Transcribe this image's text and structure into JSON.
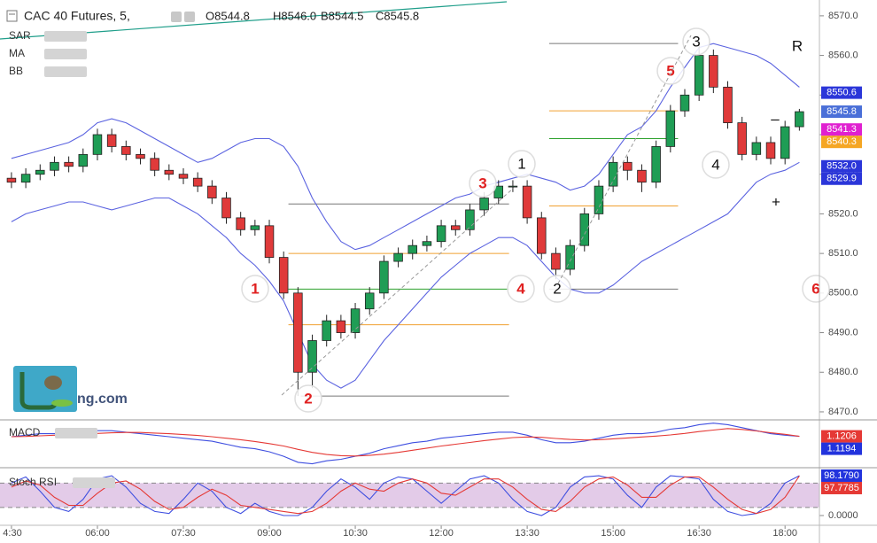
{
  "header": {
    "symbol": "CAC 40 Futures, 5,",
    "ohlc": [
      "O8544.8",
      "H8546.0",
      "B8544.5",
      "C8545.8"
    ]
  },
  "indicators": [
    "SAR",
    "MA",
    "BB"
  ],
  "watermark": "ng.com",
  "chart_data": [
    {
      "type": "candlestick",
      "x": [
        270,
        285,
        300,
        315,
        330,
        345,
        360,
        375,
        390,
        405,
        420,
        435,
        450,
        465,
        480,
        495,
        510,
        525,
        540,
        555,
        570,
        585,
        600,
        615,
        630,
        645,
        660,
        675,
        690,
        705,
        720,
        735,
        750,
        765,
        780,
        795,
        810,
        825,
        840,
        855,
        870,
        885,
        900,
        915,
        930,
        945,
        960,
        975,
        990,
        1005,
        1020,
        1035,
        1050,
        1065,
        1080,
        1095
      ],
      "open": [
        8529,
        8528,
        8530,
        8531,
        8533,
        8532,
        8535,
        8540,
        8537,
        8535,
        8534,
        8531,
        8530,
        8529,
        8527,
        8524,
        8519,
        8516,
        8517,
        8509,
        8500,
        8480,
        8488,
        8493,
        8490,
        8496,
        8500,
        8508,
        8510,
        8512,
        8513,
        8517,
        8516,
        8521,
        8524,
        8527,
        8527,
        8519,
        8510,
        8506,
        8512,
        8520,
        8527,
        8533,
        8531,
        8528,
        8537,
        8546,
        8550,
        8560,
        8552,
        8543,
        8535,
        8538,
        8534,
        8542
      ],
      "high": [
        8530.5,
        8531.5,
        8532.5,
        8534.5,
        8534.5,
        8536.5,
        8541.5,
        8541.5,
        8538.5,
        8536.5,
        8535.5,
        8532.5,
        8531.5,
        8530.5,
        8528.5,
        8525.5,
        8520.5,
        8518.5,
        8518.5,
        8510.5,
        8501.5,
        8489.5,
        8494.5,
        8494.5,
        8497.5,
        8501.5,
        8509.5,
        8511.5,
        8513.5,
        8514.5,
        8518.5,
        8518.5,
        8522.5,
        8525.5,
        8528.5,
        8528.5,
        8528.5,
        8520.5,
        8511.5,
        8513.5,
        8521.5,
        8528.5,
        8534.5,
        8534.5,
        8532.5,
        8538.5,
        8547.5,
        8551.5,
        8563.5,
        8561.5,
        8553.5,
        8544.5,
        8539.5,
        8539.5,
        8543.5,
        8546.5
      ],
      "low": [
        8526.5,
        8526.5,
        8528.5,
        8529.5,
        8530.5,
        8530.5,
        8533.5,
        8535.5,
        8533.5,
        8532.5,
        8529.5,
        8528.5,
        8527.5,
        8525.5,
        8522.5,
        8517.5,
        8514.5,
        8514.5,
        8507.5,
        8498.5,
        8474,
        8476,
        8486.5,
        8488.5,
        8488.5,
        8494.5,
        8498.5,
        8506.5,
        8508.5,
        8510.5,
        8511.5,
        8514.5,
        8514.5,
        8519.5,
        8522.5,
        8525.5,
        8517.5,
        8508.5,
        8503.5,
        8504.5,
        8510.5,
        8518.5,
        8525.5,
        8528.5,
        8525.5,
        8526.5,
        8535.5,
        8544.5,
        8548.5,
        8550.5,
        8541.5,
        8533.5,
        8533.5,
        8532.5,
        8532.5,
        8541
      ],
      "close": [
        8528,
        8530,
        8531,
        8533,
        8532,
        8535,
        8540,
        8537,
        8535,
        8534,
        8531,
        8530,
        8529,
        8527,
        8524,
        8519,
        8516,
        8517,
        8509,
        8500,
        8480,
        8488,
        8493,
        8490,
        8496,
        8500,
        8508,
        8510,
        8512,
        8513,
        8517,
        8516,
        8521,
        8524,
        8527,
        8527,
        8519,
        8510,
        8506,
        8512,
        8520,
        8527,
        8533,
        8531,
        8528,
        8537,
        8546,
        8550,
        8560,
        8552,
        8543,
        8535,
        8538,
        8534,
        8542,
        8545.8
      ],
      "up_color": "#1f9d55",
      "down_color": "#e03a3a",
      "bands": [
        {
          "color": "#5b63e0",
          "values": [
            8534,
            8535,
            8536,
            8537,
            8538,
            8540,
            8543,
            8544,
            8543,
            8541,
            8539,
            8537,
            8535,
            8533,
            8534,
            8536,
            8538,
            8539,
            8539,
            8537,
            8532,
            8524,
            8518,
            8513,
            8511,
            8512,
            8514,
            8516,
            8518,
            8520,
            8522,
            8524,
            8525,
            8527,
            8528,
            8529,
            8530,
            8529,
            8528,
            8526,
            8527,
            8530,
            8535,
            8540,
            8542,
            8546,
            8552,
            8557,
            8562,
            8563,
            8562,
            8561,
            8560,
            8558,
            8555,
            8552
          ]
        },
        {
          "color": "#5b63e0",
          "values": [
            8518,
            8520,
            8521,
            8522,
            8523,
            8523,
            8522,
            8521,
            8522,
            8523,
            8524,
            8524,
            8522,
            8520,
            8517,
            8514,
            8510,
            8507,
            8503,
            8498,
            8490,
            8482,
            8478,
            8476,
            8478,
            8483,
            8488,
            8492,
            8496,
            8500,
            8504,
            8507,
            8510,
            8512,
            8514,
            8514,
            8512,
            8508,
            8504,
            8501,
            8500,
            8500,
            8502,
            8505,
            8508,
            8510,
            8512,
            8514,
            8516,
            8518,
            8520,
            8524,
            8528,
            8530,
            8531,
            8533
          ]
        }
      ],
      "xlim": [
        258,
        1116
      ],
      "xticks": [
        {
          "value": 270,
          "label": "4:30"
        },
        {
          "value": 360,
          "label": "06:00"
        },
        {
          "value": 450,
          "label": "07:30"
        },
        {
          "value": 540,
          "label": "09:00"
        },
        {
          "value": 630,
          "label": "10:30"
        },
        {
          "value": 720,
          "label": "12:00"
        },
        {
          "value": 810,
          "label": "13:30"
        },
        {
          "value": 900,
          "label": "15:00"
        },
        {
          "value": 990,
          "label": "16:30"
        },
        {
          "value": 1080,
          "label": "18:00"
        }
      ],
      "ylim": [
        8468.2,
        8574
      ],
      "yticks": [
        {
          "value": 8470,
          "label": "8470.0"
        },
        {
          "value": 8480,
          "label": "8480.0"
        },
        {
          "value": 8490,
          "label": "8490.0"
        },
        {
          "value": 8500,
          "label": "8500.0"
        },
        {
          "value": 8510,
          "label": "8510.0"
        },
        {
          "value": 8520,
          "label": "8520.0"
        },
        {
          "value": 8530,
          "label": "8530.0"
        },
        {
          "value": 8540,
          "label": "8540.0"
        },
        {
          "value": 8550,
          "label": "8550.0"
        },
        {
          "value": 8560,
          "label": "8560.0"
        },
        {
          "value": 8570,
          "label": "8570.0"
        }
      ],
      "levels": [
        {
          "x": [
            560,
            791
          ],
          "y": 8522.5,
          "color": "#777777"
        },
        {
          "x": [
            560,
            791
          ],
          "y": 8510,
          "color": "#f0a030"
        },
        {
          "x": [
            560,
            791
          ],
          "y": 8501,
          "color": "#2ca02c"
        },
        {
          "x": [
            560,
            791
          ],
          "y": 8492,
          "color": "#f0a030"
        },
        {
          "x": [
            573,
            791
          ],
          "y": 8474,
          "color": "#777777"
        },
        {
          "x": [
            833,
            968
          ],
          "y": 8563,
          "color": "#777777"
        },
        {
          "x": [
            833,
            968
          ],
          "y": 8546,
          "color": "#f0a030"
        },
        {
          "x": [
            833,
            968
          ],
          "y": 8539,
          "color": "#2ca02c"
        },
        {
          "x": [
            833,
            968
          ],
          "y": 8522,
          "color": "#f0a030"
        },
        {
          "x": [
            833,
            968
          ],
          "y": 8501,
          "color": "#777777"
        }
      ],
      "tags": [
        {
          "value": 8550.6,
          "label": "8550.6",
          "color": "#2b36d9"
        },
        {
          "value": 8545.8,
          "label": "8545.8",
          "color": "#4a6fd8"
        },
        {
          "value": 8541.3,
          "label": "8541.3",
          "color": "#e020d0"
        },
        {
          "value": 8540.3,
          "label": "8540.3",
          "color": "#f5a623"
        },
        {
          "value": 8532.0,
          "label": "8532.0",
          "color": "#2b36d9"
        },
        {
          "value": 8529.9,
          "label": "8529.9",
          "color": "#2b36d9"
        }
      ],
      "annotations": [
        {
          "text": "1",
          "color": "#e02020",
          "circle": true
        },
        {
          "text": "2",
          "color": "#e02020",
          "circle": true
        },
        {
          "text": "3",
          "color": "#e02020",
          "circle": true
        },
        {
          "text": "4",
          "color": "#e02020",
          "circle": true
        },
        {
          "text": "5",
          "color": "#e02020",
          "circle": true
        },
        {
          "text": "6",
          "color": "#e02020",
          "circle": true
        },
        {
          "text": "1",
          "color": "#111111",
          "circle": true
        },
        {
          "text": "2",
          "color": "#111111",
          "circle": true
        },
        {
          "text": "3",
          "color": "#111111",
          "circle": true
        },
        {
          "text": "4",
          "color": "#111111",
          "circle": true
        },
        {
          "text": "R",
          "color": "#111111",
          "circle": false
        },
        {
          "text": "+",
          "color": "#111111",
          "circle": false
        },
        {
          "text": "–",
          "color": "#111111",
          "circle": false
        }
      ]
    },
    {
      "type": "line",
      "title": "MACD",
      "series": [
        {
          "color": "#3f4fe0",
          "values": [
            1,
            1.5,
            2,
            2,
            2.2,
            2.5,
            3,
            3,
            2.5,
            2,
            1.5,
            1,
            0.5,
            0,
            -0.5,
            -1.5,
            -2.5,
            -3,
            -4,
            -5.5,
            -7.5,
            -8,
            -7,
            -6.5,
            -5.5,
            -4.5,
            -3,
            -2,
            -1,
            -0.5,
            0.5,
            1,
            1.5,
            2,
            2.5,
            2.5,
            1.5,
            0,
            -1,
            -1,
            -0.5,
            0.5,
            1.5,
            2,
            2,
            2.5,
            3.5,
            4,
            5,
            5.5,
            5,
            4,
            3,
            2,
            1.5,
            1.1194
          ]
        },
        {
          "color": "#e53935",
          "values": [
            1,
            1.1,
            1.3,
            1.5,
            1.7,
            1.9,
            2.1,
            2.3,
            2.4,
            2.4,
            2.2,
            2,
            1.7,
            1.4,
            1,
            0.5,
            0,
            -0.6,
            -1.3,
            -2.1,
            -3.2,
            -4.2,
            -4.9,
            -5.3,
            -5.4,
            -5.2,
            -4.8,
            -4.2,
            -3.5,
            -2.8,
            -2.1,
            -1.5,
            -0.9,
            -0.3,
            0.2,
            0.7,
            0.9,
            0.8,
            0.4,
            0.1,
            -0.1,
            0,
            0.3,
            0.6,
            0.9,
            1.2,
            1.6,
            2.1,
            2.7,
            3.2,
            3.7,
            3.4,
            2.9,
            2.3,
            1.8,
            1.1206
          ]
        }
      ],
      "ylim": [
        -9,
        6
      ],
      "tags": [
        {
          "value": 1.1206,
          "label": "1.1206",
          "color": "#e53935"
        },
        {
          "value": 1.1194,
          "label": "1.1194",
          "color": "#2233dd"
        }
      ]
    },
    {
      "type": "line",
      "title": "Stoch RSI",
      "series": [
        {
          "color": "#3f4fe0",
          "values": [
            80,
            95,
            60,
            20,
            10,
            40,
            90,
            98,
            70,
            30,
            10,
            5,
            40,
            80,
            60,
            20,
            5,
            30,
            10,
            0,
            0,
            20,
            60,
            90,
            70,
            40,
            80,
            95,
            90,
            60,
            30,
            60,
            90,
            98,
            80,
            40,
            10,
            0,
            20,
            70,
            95,
            98,
            90,
            50,
            20,
            70,
            98,
            95,
            90,
            40,
            10,
            0,
            5,
            30,
            80,
            98.179
          ]
        },
        {
          "color": "#e53935",
          "values": [
            70,
            85,
            75,
            45,
            25,
            25,
            55,
            80,
            85,
            65,
            35,
            15,
            20,
            45,
            65,
            50,
            25,
            20,
            15,
            10,
            5,
            10,
            30,
            60,
            80,
            65,
            60,
            80,
            90,
            80,
            55,
            50,
            70,
            90,
            90,
            70,
            40,
            15,
            10,
            35,
            70,
            90,
            95,
            75,
            45,
            45,
            75,
            95,
            95,
            70,
            40,
            15,
            5,
            15,
            45,
            97.7785
          ]
        }
      ],
      "ylim": [
        -21.8,
        113.4
      ],
      "yticks": [
        {
          "value": 0,
          "label": "0.0000"
        }
      ],
      "band": [
        20,
        80
      ],
      "band_color": "#e3cbe8",
      "tags": [
        {
          "value": 98.179,
          "label": "98.1790",
          "color": "#2233dd"
        },
        {
          "value": 97.7785,
          "label": "97.7785",
          "color": "#e53935"
        }
      ]
    }
  ]
}
